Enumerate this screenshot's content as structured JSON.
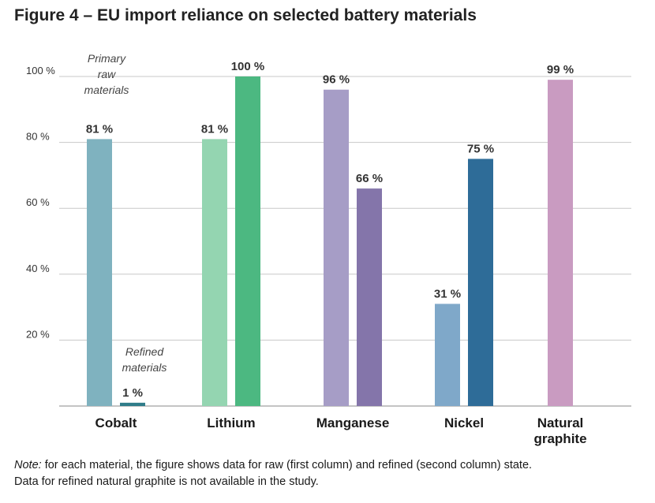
{
  "title": "Figure 4 – EU import reliance on selected battery materials",
  "note": {
    "label": "Note:",
    "line1": "for each material, the figure shows data for raw (first column) and refined (second column) state.",
    "line2": "Data for refined natural graphite is not available in the study."
  },
  "chart_data": {
    "type": "bar",
    "title": "Figure 4 – EU import reliance on selected battery materials",
    "xlabel": "",
    "ylabel": "",
    "ylim": [
      0,
      100
    ],
    "yticks": [
      {
        "value": 100,
        "label": "100 %"
      },
      {
        "value": 80,
        "label": "80 %"
      },
      {
        "value": 60,
        "label": "60 %"
      },
      {
        "value": 40,
        "label": "40 %"
      },
      {
        "value": 20,
        "label": "20 %"
      }
    ],
    "grid": true,
    "categories": [
      {
        "lines": [
          "Cobalt"
        ]
      },
      {
        "lines": [
          "Lithium"
        ]
      },
      {
        "lines": [
          "Manganese"
        ]
      },
      {
        "lines": [
          "Nickel"
        ]
      },
      {
        "lines": [
          "Natural",
          "graphite"
        ]
      }
    ],
    "series": [
      {
        "name": "Primary raw materials",
        "values": [
          81,
          81,
          96,
          31,
          99
        ],
        "labels": [
          "81 %",
          "81 %",
          "96 %",
          "31 %",
          "99 %"
        ],
        "colors": [
          "#7fb2bf",
          "#94d5b1",
          "#a69dc6",
          "#7fa8c9",
          "#c99bc1"
        ]
      },
      {
        "name": "Refined materials",
        "values": [
          1,
          100,
          66,
          75,
          null
        ],
        "labels": [
          "1 %",
          "100 %",
          "66 %",
          "75 %",
          ""
        ],
        "colors": [
          "#2f7c89",
          "#4cb881",
          "#8475aa",
          "#2e6c98",
          null
        ]
      }
    ],
    "annotations": [
      {
        "text": [
          "Primary",
          "raw",
          "materials"
        ],
        "target": "Cobalt primary raw materials"
      },
      {
        "text": [
          "Refined",
          "materials"
        ],
        "target": "Cobalt refined materials"
      }
    ]
  }
}
